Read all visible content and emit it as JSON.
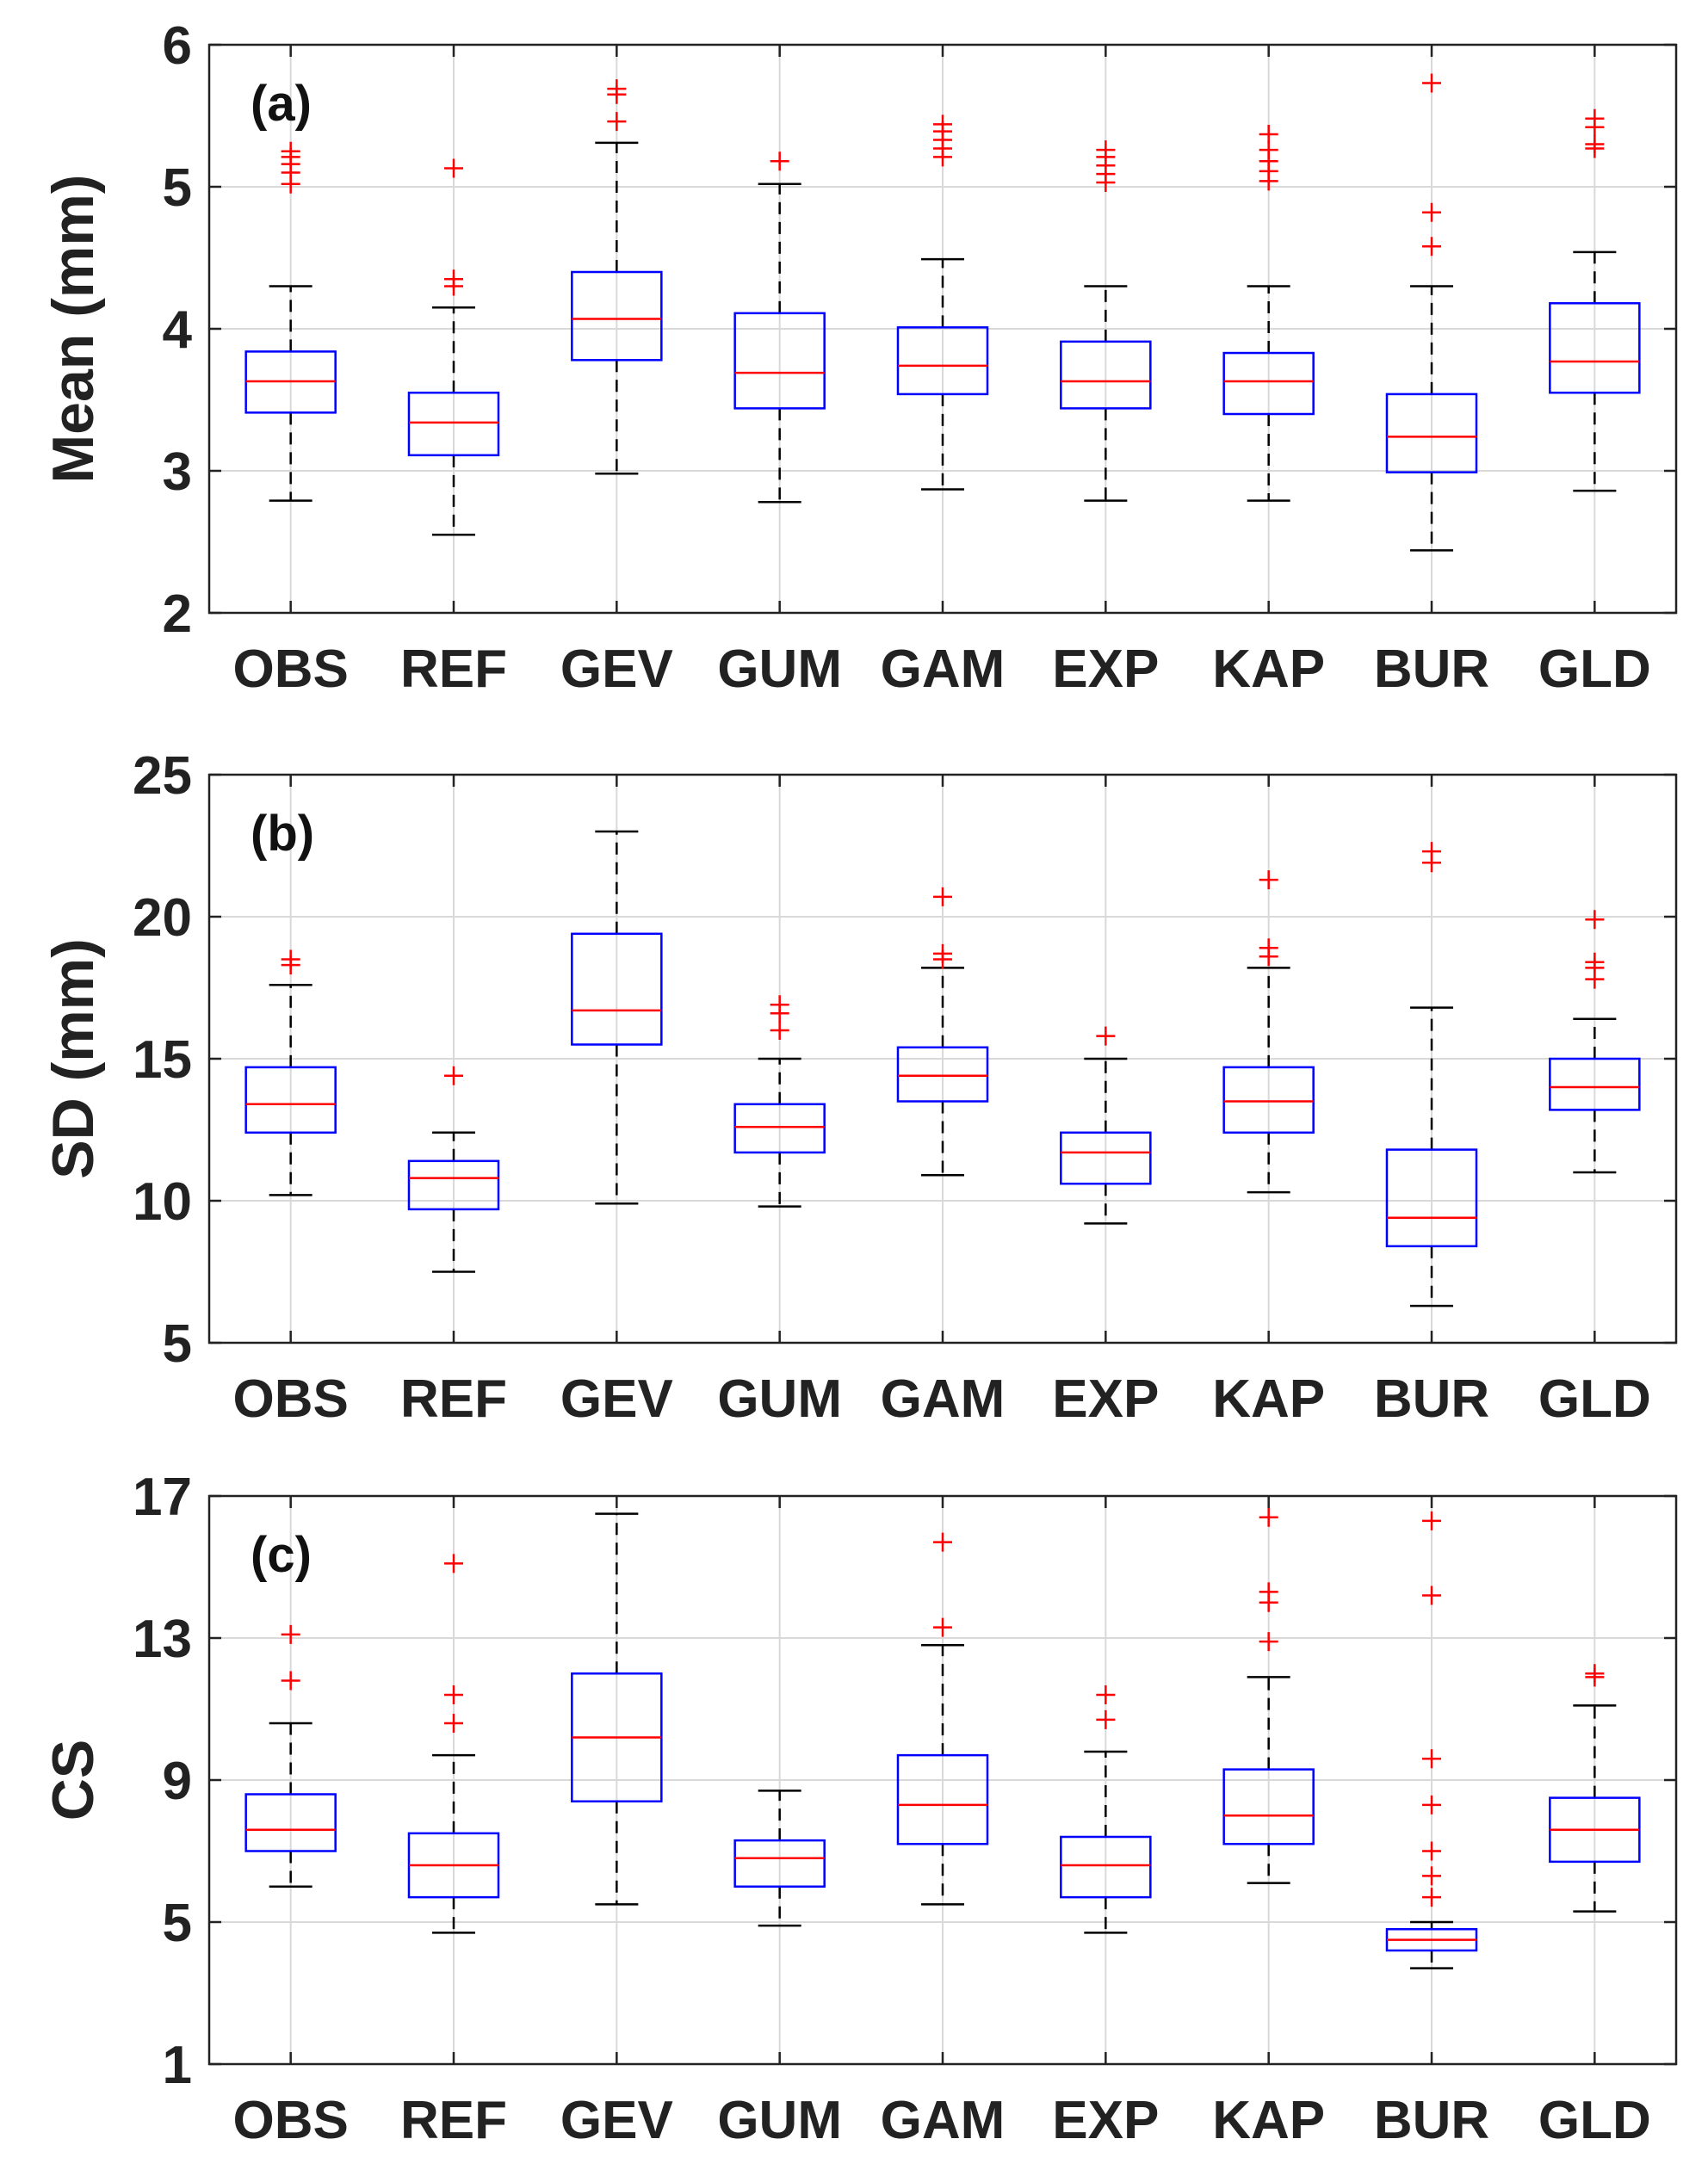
{
  "colors": {
    "box": "#0000FF",
    "median": "#FF0000",
    "whisker": "#000000",
    "outlier": "#FF0000",
    "grid": "#D9D9D9",
    "axis": "#222222"
  },
  "chart_data": [
    {
      "type": "box",
      "panel_label": "(a)",
      "title": "",
      "xlabel": "",
      "ylabel": "Mean (mm)",
      "ylim": [
        2,
        6
      ],
      "yticks": [
        2,
        3,
        4,
        5,
        6
      ],
      "grid": true,
      "categories": [
        "OBS",
        "REF",
        "GEV",
        "GUM",
        "GAM",
        "EXP",
        "KAP",
        "BUR",
        "GLD"
      ],
      "boxes": [
        {
          "name": "OBS",
          "whislo": 2.79,
          "q1": 3.41,
          "med": 3.63,
          "q3": 3.84,
          "whishi": 4.3,
          "fliers": [
            5.02,
            5.1,
            5.16,
            5.21,
            5.25
          ]
        },
        {
          "name": "REF",
          "whislo": 2.55,
          "q1": 3.11,
          "med": 3.34,
          "q3": 3.55,
          "whishi": 4.15,
          "fliers": [
            4.3,
            4.35,
            5.13
          ]
        },
        {
          "name": "GEV",
          "whislo": 2.98,
          "q1": 3.78,
          "med": 4.07,
          "q3": 4.4,
          "whishi": 5.31,
          "fliers": [
            5.46,
            5.65,
            5.69
          ]
        },
        {
          "name": "GUM",
          "whislo": 2.78,
          "q1": 3.44,
          "med": 3.69,
          "q3": 4.11,
          "whishi": 5.02,
          "fliers": [
            5.18
          ]
        },
        {
          "name": "GAM",
          "whislo": 2.87,
          "q1": 3.54,
          "med": 3.74,
          "q3": 4.01,
          "whishi": 4.49,
          "fliers": [
            5.21,
            5.27,
            5.33,
            5.39,
            5.44
          ]
        },
        {
          "name": "EXP",
          "whislo": 2.79,
          "q1": 3.44,
          "med": 3.63,
          "q3": 3.91,
          "whishi": 4.3,
          "fliers": [
            5.03,
            5.09,
            5.15,
            5.21,
            5.26
          ]
        },
        {
          "name": "KAP",
          "whislo": 2.79,
          "q1": 3.4,
          "med": 3.63,
          "q3": 3.83,
          "whishi": 4.3,
          "fliers": [
            5.04,
            5.11,
            5.18,
            5.26,
            5.37
          ]
        },
        {
          "name": "BUR",
          "whislo": 2.44,
          "q1": 2.99,
          "med": 3.24,
          "q3": 3.54,
          "whishi": 4.3,
          "fliers": [
            4.58,
            4.82,
            5.73
          ]
        },
        {
          "name": "GLD",
          "whislo": 2.86,
          "q1": 3.55,
          "med": 3.77,
          "q3": 4.18,
          "whishi": 4.54,
          "fliers": [
            5.27,
            5.3,
            5.42,
            5.48
          ]
        }
      ]
    },
    {
      "type": "box",
      "panel_label": "(b)",
      "title": "",
      "xlabel": "",
      "ylabel": "SD (mm)",
      "ylim": [
        5,
        25
      ],
      "yticks": [
        5,
        10,
        15,
        20,
        25
      ],
      "grid": true,
      "categories": [
        "OBS",
        "REF",
        "GEV",
        "GUM",
        "GAM",
        "EXP",
        "KAP",
        "BUR",
        "GLD"
      ],
      "boxes": [
        {
          "name": "OBS",
          "whislo": 10.2,
          "q1": 12.4,
          "med": 13.4,
          "q3": 14.7,
          "whishi": 17.6,
          "fliers": [
            18.3,
            18.5
          ]
        },
        {
          "name": "REF",
          "whislo": 7.5,
          "q1": 9.7,
          "med": 10.8,
          "q3": 11.4,
          "whishi": 12.4,
          "fliers": [
            14.4
          ]
        },
        {
          "name": "GEV",
          "whislo": 9.9,
          "q1": 15.5,
          "med": 16.7,
          "q3": 19.4,
          "whishi": 23.0,
          "fliers": []
        },
        {
          "name": "GUM",
          "whislo": 9.8,
          "q1": 11.7,
          "med": 12.6,
          "q3": 13.4,
          "whishi": 15.0,
          "fliers": [
            16.0,
            16.6,
            16.9
          ]
        },
        {
          "name": "GAM",
          "whislo": 10.9,
          "q1": 13.5,
          "med": 14.4,
          "q3": 15.4,
          "whishi": 18.2,
          "fliers": [
            18.5,
            18.7,
            20.7
          ]
        },
        {
          "name": "EXP",
          "whislo": 9.2,
          "q1": 10.6,
          "med": 11.7,
          "q3": 12.4,
          "whishi": 15.0,
          "fliers": [
            15.8
          ]
        },
        {
          "name": "KAP",
          "whislo": 10.3,
          "q1": 12.4,
          "med": 13.5,
          "q3": 14.7,
          "whishi": 18.2,
          "fliers": [
            18.6,
            18.9,
            21.3
          ]
        },
        {
          "name": "BUR",
          "whislo": 6.3,
          "q1": 8.4,
          "med": 9.4,
          "q3": 11.8,
          "whishi": 16.8,
          "fliers": [
            21.9,
            22.3
          ]
        },
        {
          "name": "GLD",
          "whislo": 11.0,
          "q1": 13.2,
          "med": 14.0,
          "q3": 15.0,
          "whishi": 16.4,
          "fliers": [
            17.8,
            18.2,
            18.4,
            19.9
          ]
        }
      ]
    },
    {
      "type": "box",
      "panel_label": "(c)",
      "title": "",
      "xlabel": "",
      "ylabel": "CS",
      "ylim": [
        1,
        17
      ],
      "yticks": [
        1,
        5,
        9,
        13,
        17
      ],
      "grid": true,
      "categories": [
        "OBS",
        "REF",
        "GEV",
        "GUM",
        "GAM",
        "EXP",
        "KAP",
        "BUR",
        "GLD"
      ],
      "boxes": [
        {
          "name": "OBS",
          "whislo": 6.0,
          "q1": 7.0,
          "med": 7.6,
          "q3": 8.6,
          "whishi": 10.6,
          "fliers": [
            11.8,
            13.1
          ]
        },
        {
          "name": "REF",
          "whislo": 4.7,
          "q1": 5.7,
          "med": 6.6,
          "q3": 7.5,
          "whishi": 9.7,
          "fliers": [
            10.6,
            11.4,
            15.1
          ]
        },
        {
          "name": "GEV",
          "whislo": 5.5,
          "q1": 8.4,
          "med": 10.2,
          "q3": 12.0,
          "whishi": 16.5,
          "fliers": []
        },
        {
          "name": "GUM",
          "whislo": 4.9,
          "q1": 6.0,
          "med": 6.8,
          "q3": 7.3,
          "whishi": 8.7,
          "fliers": []
        },
        {
          "name": "GAM",
          "whislo": 5.5,
          "q1": 7.2,
          "med": 8.3,
          "q3": 9.7,
          "whishi": 12.8,
          "fliers": [
            13.3,
            15.7
          ]
        },
        {
          "name": "EXP",
          "whislo": 4.7,
          "q1": 5.7,
          "med": 6.6,
          "q3": 7.4,
          "whishi": 9.8,
          "fliers": [
            10.7,
            11.4
          ]
        },
        {
          "name": "KAP",
          "whislo": 6.1,
          "q1": 7.2,
          "med": 8.0,
          "q3": 9.3,
          "whishi": 11.9,
          "fliers": [
            12.9,
            14.0,
            14.3,
            16.4
          ]
        },
        {
          "name": "BUR",
          "whislo": 3.7,
          "q1": 4.2,
          "med": 4.5,
          "q3": 4.8,
          "whishi": 5.0,
          "fliers": [
            5.7,
            6.3,
            7.0,
            8.3,
            9.6,
            14.2,
            16.3
          ]
        },
        {
          "name": "GLD",
          "whislo": 5.3,
          "q1": 6.7,
          "med": 7.6,
          "q3": 8.5,
          "whishi": 11.1,
          "fliers": [
            11.9,
            12.0
          ]
        }
      ]
    }
  ]
}
